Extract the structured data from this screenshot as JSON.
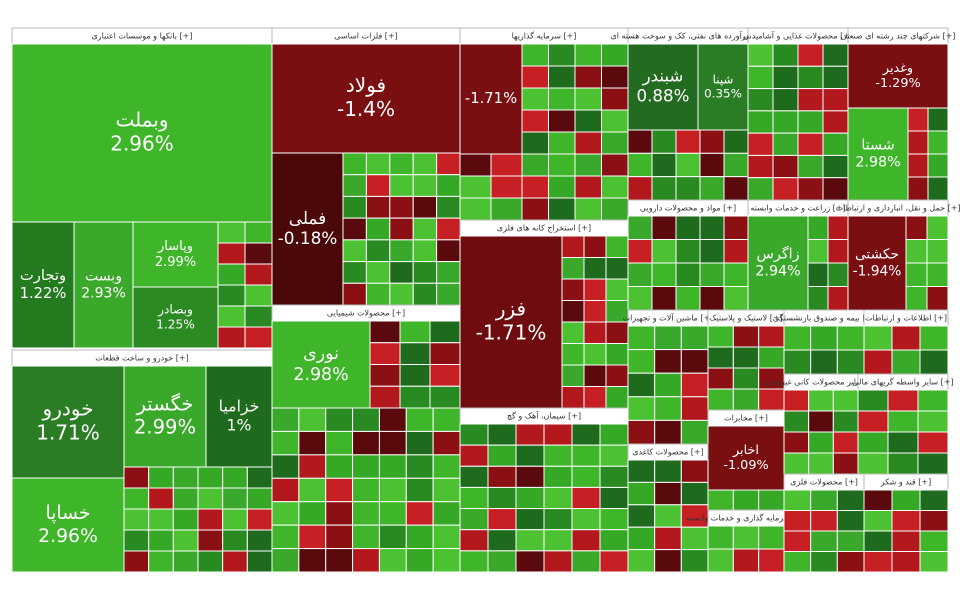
{
  "sectors": [
    {
      "title": "بانکها و موسسات اعتباری [+]",
      "tiles": [
        {
          "label": "وبملت",
          "change": "2.96%",
          "color": "#3fb52a"
        },
        {
          "label": "وتجارت",
          "change": "1.22%",
          "color": "#237a1f"
        },
        {
          "label": "وبست",
          "change": "2.93%",
          "color": "#3aa82a"
        },
        {
          "label": "وپاسار",
          "change": "2.99%",
          "color": "#3fb52a"
        },
        {
          "label": "وبصادر",
          "change": "1.25%",
          "color": "#2c8a22"
        }
      ]
    },
    {
      "title": "خودرو و ساخت قطعات [+]",
      "tiles": [
        {
          "label": "خودرو",
          "change": "1.71%",
          "color": "#2a7d25"
        },
        {
          "label": "خساپا",
          "change": "2.96%",
          "color": "#3fb52a"
        },
        {
          "label": "خگستر",
          "change": "2.99%",
          "color": "#3aa82a"
        },
        {
          "label": "خزامیا",
          "change": "1%",
          "color": "#1f6b1e"
        }
      ]
    },
    {
      "title": "فلزات اساسی [+]",
      "tiles": [
        {
          "label": "فولاد",
          "change": "-1.4%",
          "color": "#7a0f12"
        },
        {
          "label": "فملی",
          "change": "-0.18%",
          "color": "#4a0808"
        }
      ]
    },
    {
      "title": "محصولات شیمیایی [+]",
      "tiles": [
        {
          "label": "نوری",
          "change": "2.98%",
          "color": "#3fb52a"
        }
      ]
    },
    {
      "title": "سرمایه گذاریها [+]",
      "tiles": [
        {
          "change": "-1.71%",
          "color": "#7a0f12"
        }
      ]
    },
    {
      "title": "استخراج کانه های فلزی [+]",
      "tiles": [
        {
          "label": "فزر",
          "change": "-1.71%",
          "color": "#6e0c0f"
        }
      ]
    },
    {
      "title": "سیمان، آهک و گچ [+]",
      "tiles": []
    },
    {
      "title": "فرآورده های نفتی، کک و سوخت هسته ای [+]",
      "tiles": [
        {
          "label": "شبندر",
          "change": "0.88%",
          "color": "#236b20"
        },
        {
          "label": "شپنا",
          "change": "0.35%",
          "color": "#2a7d25"
        }
      ]
    },
    {
      "title": "محصولات غذایی و آشامیدنی [+]",
      "tiles": []
    },
    {
      "title": "شرکتهای چند رشته ای صنعتی [+]",
      "tiles": [
        {
          "label": "وغدیر",
          "change": "-1.29%",
          "color": "#7a0f12"
        },
        {
          "label": "شستا",
          "change": "2.98%",
          "color": "#3fb52a"
        }
      ]
    },
    {
      "title": "مواد و محصولات دارویی [+]",
      "tiles": []
    },
    {
      "title": "زراعت و خدمات وابسته [+]",
      "tiles": [
        {
          "label": "زاگرس",
          "change": "2.94%",
          "color": "#3aa82a"
        }
      ]
    },
    {
      "title": "حمل و نقل، انبارداری و ارتباطات [+]",
      "tiles": [
        {
          "label": "حکشتی",
          "change": "-1.94%",
          "color": "#7a0f12"
        }
      ]
    },
    {
      "title": "ماشین آلات و تجهیزات [+]",
      "tiles": []
    },
    {
      "title": "لاستیک و پلاستیک [+]",
      "tiles": []
    },
    {
      "title": "بیمه و صندوق بازنشستگی [+]",
      "tiles": []
    },
    {
      "title": "اطلاعات و ارتباطات [+]",
      "tiles": []
    },
    {
      "title": "مخابرات [+]",
      "tiles": [
        {
          "label": "اخابر",
          "change": "-1.09%",
          "color": "#7a0f12"
        }
      ]
    },
    {
      "title": "محصولات کاغذی [+]",
      "tiles": []
    },
    {
      "title": "سایر محصولات کانی غیرفلزی [+]",
      "tiles": []
    },
    {
      "title": "سایر واسطه گریهای مالی [+]",
      "tiles": []
    },
    {
      "title": "سرمایه گذاری و خدمات وابسته [+]",
      "tiles": []
    },
    {
      "title": "محصولات فلزی [+]",
      "tiles": []
    },
    {
      "title": "قند و شکر [+]",
      "tiles": []
    }
  ]
}
